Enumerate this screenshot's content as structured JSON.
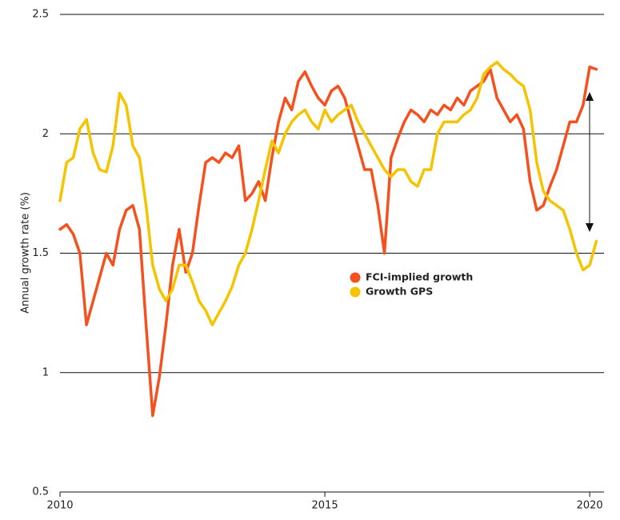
{
  "chart_data": {
    "type": "line",
    "y_label": "Annual growth rate (%)",
    "x": [
      2010,
      2010.125,
      2010.25,
      2010.375,
      2010.5,
      2010.625,
      2010.75,
      2010.875,
      2011,
      2011.125,
      2011.25,
      2011.375,
      2011.5,
      2011.625,
      2011.75,
      2011.875,
      2012,
      2012.125,
      2012.25,
      2012.375,
      2012.5,
      2012.625,
      2012.75,
      2012.875,
      2013,
      2013.125,
      2013.25,
      2013.375,
      2013.5,
      2013.625,
      2013.75,
      2013.875,
      2014,
      2014.125,
      2014.25,
      2014.375,
      2014.5,
      2014.625,
      2014.75,
      2014.875,
      2015,
      2015.125,
      2015.25,
      2015.375,
      2015.5,
      2015.625,
      2015.75,
      2015.875,
      2016,
      2016.125,
      2016.25,
      2016.375,
      2016.5,
      2016.625,
      2016.75,
      2016.875,
      2017,
      2017.125,
      2017.25,
      2017.375,
      2017.5,
      2017.625,
      2017.75,
      2017.875,
      2018,
      2018.125,
      2018.25,
      2018.375,
      2018.5,
      2018.625,
      2018.75,
      2018.875,
      2019,
      2019.125,
      2019.25,
      2019.375,
      2019.5,
      2019.625,
      2019.75,
      2019.875,
      2020,
      2020.125
    ],
    "series": [
      {
        "name": "FCI-implied growth",
        "color": "#f4511e",
        "values": [
          1.6,
          1.62,
          1.58,
          1.5,
          1.2,
          1.3,
          1.4,
          1.5,
          1.45,
          1.6,
          1.68,
          1.7,
          1.6,
          1.2,
          0.82,
          0.98,
          1.2,
          1.45,
          1.6,
          1.42,
          1.5,
          1.7,
          1.88,
          1.9,
          1.88,
          1.92,
          1.9,
          1.95,
          1.72,
          1.75,
          1.8,
          1.72,
          1.9,
          2.05,
          2.15,
          2.1,
          2.22,
          2.26,
          2.2,
          2.15,
          2.12,
          2.18,
          2.2,
          2.15,
          2.05,
          1.95,
          1.85,
          1.85,
          1.7,
          1.5,
          1.9,
          1.98,
          2.05,
          2.1,
          2.08,
          2.05,
          2.1,
          2.08,
          2.12,
          2.1,
          2.15,
          2.12,
          2.18,
          2.2,
          2.22,
          2.27,
          2.15,
          2.1,
          2.05,
          2.08,
          2.02,
          1.8,
          1.68,
          1.7,
          1.78,
          1.85,
          1.95,
          2.05,
          2.05,
          2.12,
          2.28,
          2.27
        ]
      },
      {
        "name": "Growth GPS",
        "color": "#f5c400",
        "values": [
          1.72,
          1.88,
          1.9,
          2.02,
          2.06,
          1.92,
          1.85,
          1.84,
          1.95,
          2.17,
          2.12,
          1.95,
          1.9,
          1.7,
          1.45,
          1.35,
          1.3,
          1.35,
          1.45,
          1.45,
          1.38,
          1.3,
          1.26,
          1.2,
          1.25,
          1.3,
          1.36,
          1.45,
          1.5,
          1.6,
          1.72,
          1.85,
          1.97,
          1.92,
          2.0,
          2.05,
          2.08,
          2.1,
          2.05,
          2.02,
          2.1,
          2.05,
          2.08,
          2.1,
          2.12,
          2.05,
          2.0,
          1.95,
          1.9,
          1.85,
          1.82,
          1.85,
          1.85,
          1.8,
          1.78,
          1.85,
          1.85,
          2.0,
          2.05,
          2.05,
          2.05,
          2.08,
          2.1,
          2.15,
          2.25,
          2.28,
          2.3,
          2.27,
          2.25,
          2.22,
          2.2,
          2.1,
          1.88,
          1.76,
          1.72,
          1.7,
          1.68,
          1.6,
          1.5,
          1.43,
          1.45,
          1.55
        ]
      }
    ],
    "xlim": [
      2010,
      2020.27
    ],
    "xticks": [
      2010,
      2015,
      2020
    ],
    "ylim": [
      0.5,
      2.5
    ],
    "yticks": [
      0.5,
      1,
      1.5,
      2,
      2.5
    ],
    "grid": true,
    "legend_loc": "center"
  }
}
